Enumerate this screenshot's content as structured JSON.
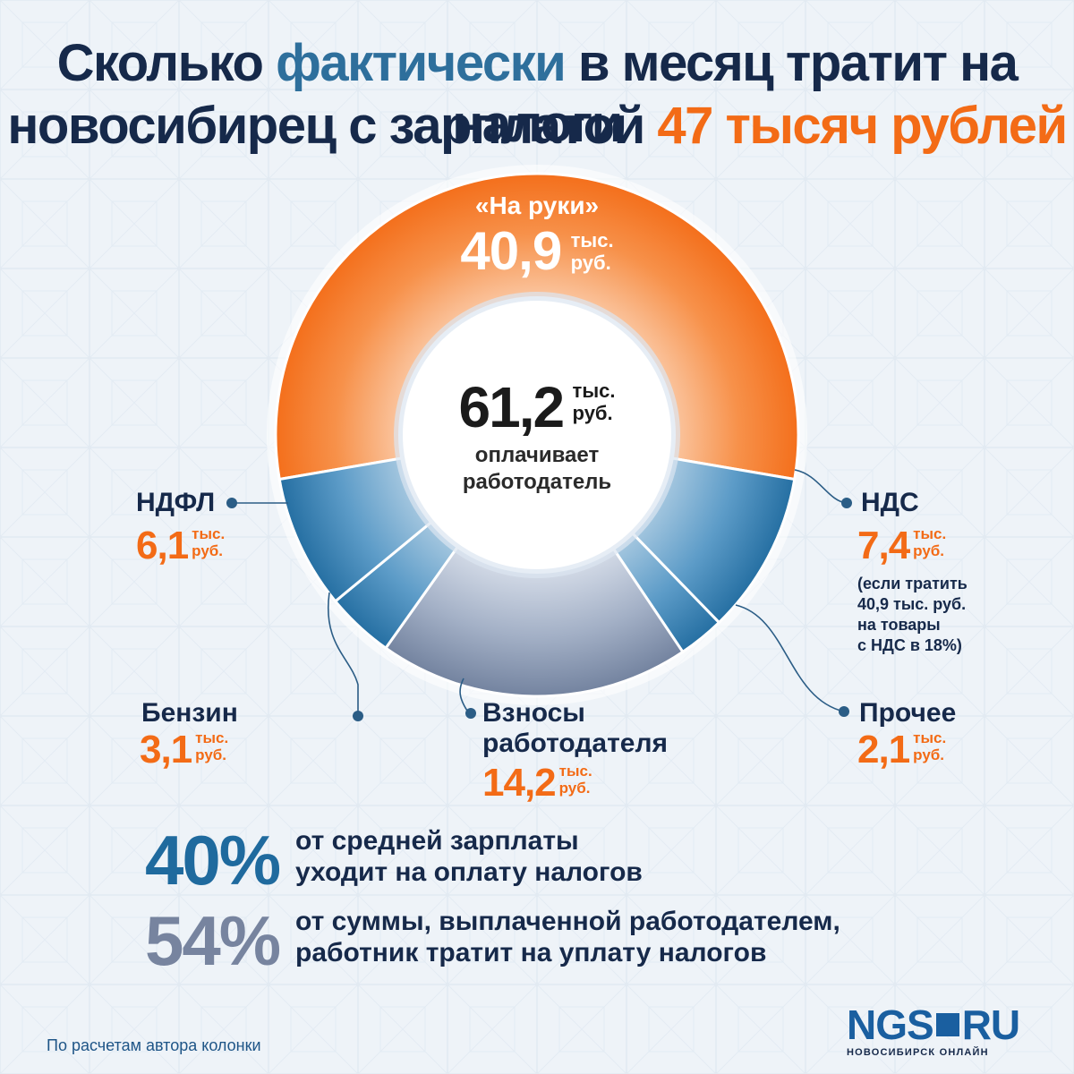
{
  "title": {
    "line1_a": "Сколько",
    "line1_b": "фактически",
    "line1_c": "в месяц тратит на налоги",
    "line2_a": "новосибирец с зарплатой",
    "line2_b": "47 тысяч рублей"
  },
  "colors": {
    "orange": "#f36b16",
    "blue": "#2e76a8",
    "slate": "#7d8da8",
    "navy": "#16294a"
  },
  "center": {
    "value": "61,2",
    "unit_line1": "тыс.",
    "unit_line2": "руб.",
    "desc_line1": "оплачивает",
    "desc_line2": "работодатель"
  },
  "chart_data": {
    "type": "pie",
    "title": "Сколько фактически в месяц тратит на налоги новосибирец с зарплатой 47 тысяч рублей",
    "total": 61.2,
    "unit": "тыс. руб.",
    "slices": [
      {
        "key": "na_ruki",
        "label": "«На руки»",
        "value": 40.9,
        "color": "#f36b16"
      },
      {
        "key": "nds",
        "label": "НДС",
        "value": 7.4,
        "color": "#2e76a8"
      },
      {
        "key": "prochee",
        "label": "Прочее",
        "value": 2.1,
        "color": "#2e76a8"
      },
      {
        "key": "vznosy",
        "label": "Взносы работодателя",
        "value": 14.2,
        "color": "#7d8da8"
      },
      {
        "key": "benzin",
        "label": "Бензин",
        "value": 3.1,
        "color": "#2e76a8"
      },
      {
        "key": "ndfl",
        "label": "НДФЛ",
        "value": 6.1,
        "color": "#2e76a8"
      }
    ]
  },
  "labels": {
    "na_ruki": {
      "name": "«На руки»",
      "value": "40,9",
      "unit1": "тыс.",
      "unit2": "руб."
    },
    "ndfl": {
      "name": "НДФЛ",
      "value": "6,1",
      "unit1": "тыс.",
      "unit2": "руб."
    },
    "nds": {
      "name": "НДС",
      "value": "7,4",
      "unit1": "тыс.",
      "unit2": "руб.",
      "note1": "(если тратить",
      "note2": "40,9 тыс. руб.",
      "note3": "на товары",
      "note4": "с НДС в 18%)"
    },
    "benzin": {
      "name": "Бензин",
      "value": "3,1",
      "unit1": "тыс.",
      "unit2": "руб."
    },
    "vznosy": {
      "name1": "Взносы",
      "name2": "работодателя",
      "value": "14,2",
      "unit1": "тыс.",
      "unit2": "руб."
    },
    "prochee": {
      "name": "Прочее",
      "value": "2,1",
      "unit1": "тыс.",
      "unit2": "руб."
    }
  },
  "stats": [
    {
      "pct": "40%",
      "line1": "от средней зарплаты",
      "line2": "уходит на оплату налогов",
      "color": "#1f6a9e"
    },
    {
      "pct": "54%",
      "line1": "от суммы, выплаченной работодателем,",
      "line2": "работник тратит на уплату налогов",
      "color": "#77849f"
    }
  ],
  "source": "По расчетам автора колонки",
  "logo": {
    "ngs": "NGS",
    "ru": "RU",
    "sub": "НОВОСИБИРСК ОНЛАЙН"
  }
}
